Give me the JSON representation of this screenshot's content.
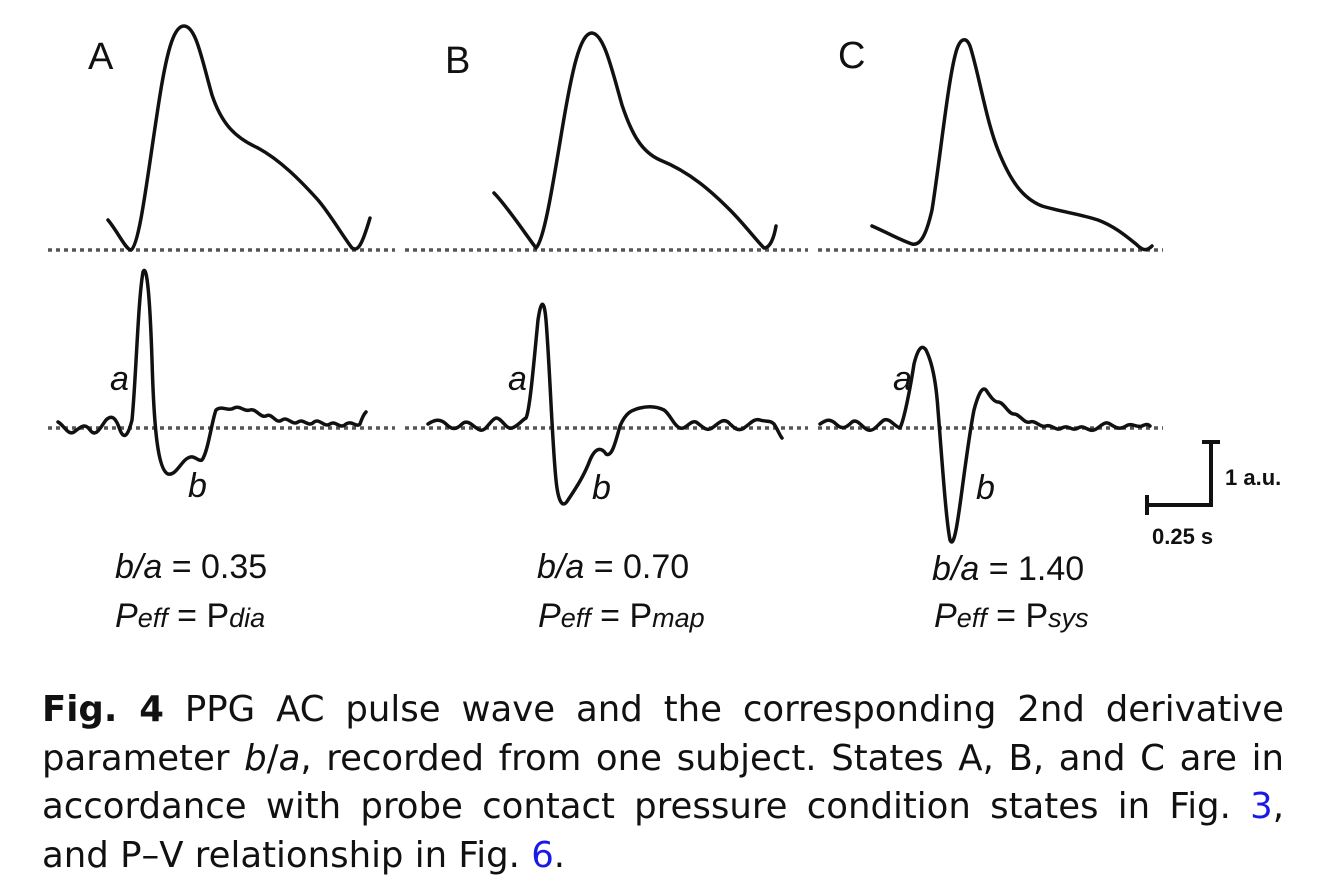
{
  "panels": [
    {
      "label": "A",
      "a_label": "a",
      "b_label": "b",
      "ratio_var": "b/a",
      "ratio_eq": " = ",
      "ratio_value": "0.35",
      "p_var": "P",
      "p_var_sub": "eff",
      "p_eq": " = ",
      "p_val": "P",
      "p_val_sub": "dia"
    },
    {
      "label": "B",
      "a_label": "a",
      "b_label": "b",
      "ratio_var": "b/a",
      "ratio_eq": " = ",
      "ratio_value": "0.70",
      "p_var": "P",
      "p_var_sub": "eff",
      "p_eq": " = ",
      "p_val": "P",
      "p_val_sub": "map"
    },
    {
      "label": "C",
      "a_label": "a",
      "b_label": "b",
      "ratio_var": "b/a",
      "ratio_eq": " = ",
      "ratio_value": "1.40",
      "p_var": "P",
      "p_var_sub": "eff",
      "p_eq": " = ",
      "p_val": "P",
      "p_val_sub": "sys"
    }
  ],
  "scale_bar": {
    "vertical_label": "1 a.u.",
    "horizontal_label": "0.25 s"
  },
  "caption": {
    "label": "Fig. 4",
    "text_1": " PPG AC pulse wave and the corresponding 2nd derivative parameter ",
    "param_b": "b",
    "param_slash": "/",
    "param_a": "a",
    "text_2": ", recorded from one subject. States A, B, and C are in accordance with probe contact pressure condition states in Fig. ",
    "ref_1": "3",
    "text_3": ", and P–V relationship in Fig. ",
    "ref_2": "6",
    "text_4": "."
  },
  "colors": {
    "trace": "#111111",
    "baseline": "#555555",
    "link": "#1a1ae6"
  }
}
